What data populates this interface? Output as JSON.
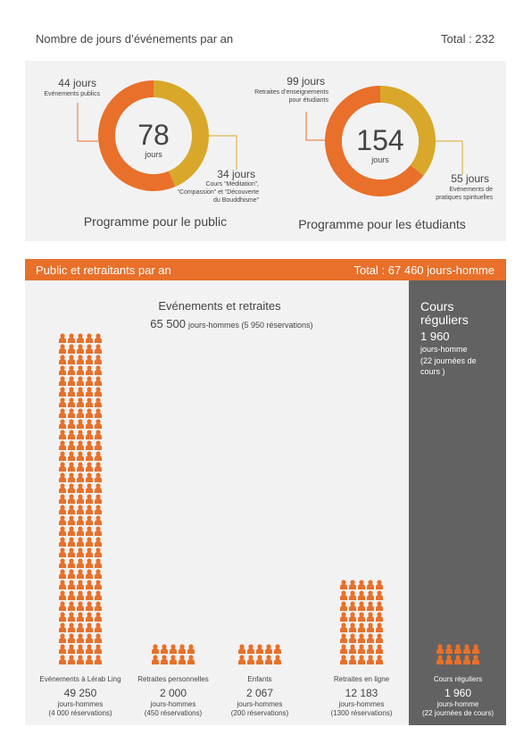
{
  "header": {
    "title": "Nombre de jours d’événements par an",
    "total": "Total : 232"
  },
  "donuts": [
    {
      "center_value": 78,
      "center_unit": "jours",
      "caption": "Programme pour le public",
      "segments": [
        {
          "value": 44,
          "label": "44 jours",
          "desc": [
            "Evénements publics"
          ],
          "color": "#e8702a"
        },
        {
          "value": 34,
          "label": "34 jours",
          "desc": [
            "Cours “Méditation”,",
            "“Compassion” et “Découverte",
            "du Bouddhisme”"
          ],
          "color": "#d9a82a"
        }
      ]
    },
    {
      "center_value": 154,
      "center_unit": "jours",
      "caption": "Programme pour les étudiants",
      "segments": [
        {
          "value": 99,
          "label": "99 jours",
          "desc": [
            "Retraites d’enseignements",
            "pour étudiants"
          ],
          "color": "#e8702a"
        },
        {
          "value": 55,
          "label": "55 jours",
          "desc": [
            "Evénements de",
            "pratiques spirituelles"
          ],
          "color": "#d9a82a"
        }
      ]
    }
  ],
  "section": {
    "title": "Public et retraitants par an",
    "total": "Total : 67 460 jours-homme"
  },
  "events": {
    "title": "Evénements et retraites",
    "total_value": "65 500",
    "total_unit": "jours-hommes (5 950 réservations)"
  },
  "regular": {
    "title": [
      "Cours",
      "réguliers"
    ],
    "value": "1 960",
    "unit": "jours-homme",
    "note": [
      "(22 journées de",
      "cours )"
    ]
  },
  "columns": {
    "names": [
      "Evénements à Lérab Ling",
      "Retraites personnelles",
      "Enfants",
      "Retraites en ligne",
      "Cours réguliers"
    ],
    "values": [
      49250,
      2000,
      2067,
      12183,
      1960
    ],
    "value_labels": [
      "49 250",
      "2 000",
      "2 067",
      "12 183",
      "1 960"
    ],
    "units": [
      "jours-hommes",
      "jours-hommes",
      "jours-hommes",
      "jours-hommes",
      "jours-homme"
    ],
    "notes": [
      "(4 000 réservations)",
      "(450 réservations)",
      "(200 réservations)",
      "(1300 réservations)",
      "(22 journées de cours)"
    ],
    "color": "#e8702a"
  }
}
